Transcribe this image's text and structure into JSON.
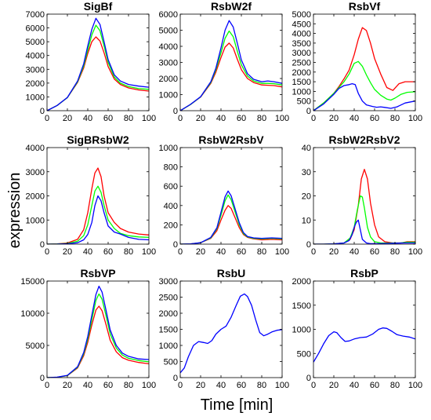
{
  "figure": {
    "xlabel": "Time [min]",
    "ylabel": "expression"
  },
  "colors": {
    "red": "#ff0000",
    "green": "#00ff00",
    "blue": "#0000ff"
  },
  "chart_data": [
    {
      "type": "line",
      "title": "SigBf",
      "xlim": [
        0,
        100
      ],
      "ylim": [
        0,
        7000
      ],
      "xticks": [
        0,
        20,
        40,
        60,
        80,
        100
      ],
      "yticks": [
        0,
        1000,
        2000,
        3000,
        4000,
        5000,
        6000,
        7000
      ],
      "series": [
        {
          "color": "red",
          "x": [
            0,
            10,
            20,
            30,
            36,
            40,
            44,
            48,
            52,
            56,
            60,
            66,
            72,
            80,
            90,
            100
          ],
          "y": [
            0,
            380,
            950,
            2050,
            3100,
            4150,
            5000,
            5350,
            5050,
            4200,
            3200,
            2300,
            1900,
            1650,
            1500,
            1420
          ]
        },
        {
          "color": "green",
          "x": [
            0,
            10,
            20,
            30,
            36,
            40,
            44,
            48,
            52,
            56,
            60,
            66,
            72,
            80,
            90,
            100
          ],
          "y": [
            0,
            380,
            950,
            2100,
            3250,
            4400,
            5500,
            6200,
            5800,
            4700,
            3500,
            2450,
            2000,
            1750,
            1600,
            1550
          ]
        },
        {
          "color": "blue",
          "x": [
            0,
            10,
            20,
            30,
            36,
            40,
            44,
            48,
            52,
            56,
            60,
            66,
            72,
            80,
            90,
            100
          ],
          "y": [
            0,
            380,
            960,
            2150,
            3400,
            4700,
            5900,
            6700,
            6250,
            5000,
            3700,
            2600,
            2150,
            1900,
            1780,
            1700
          ]
        }
      ]
    },
    {
      "type": "line",
      "title": "RsbW2f",
      "xlim": [
        0,
        100
      ],
      "ylim": [
        0,
        6000
      ],
      "xticks": [
        0,
        20,
        40,
        60,
        80,
        100
      ],
      "yticks": [
        0,
        1000,
        2000,
        3000,
        4000,
        5000,
        6000
      ],
      "series": [
        {
          "color": "red",
          "x": [
            0,
            10,
            20,
            30,
            35,
            40,
            44,
            48,
            52,
            56,
            60,
            66,
            72,
            80,
            86,
            92,
            100
          ],
          "y": [
            0,
            380,
            850,
            1700,
            2400,
            3300,
            3950,
            4200,
            3900,
            3200,
            2550,
            2000,
            1750,
            1600,
            1580,
            1560,
            1480
          ]
        },
        {
          "color": "green",
          "x": [
            0,
            10,
            20,
            30,
            35,
            40,
            44,
            48,
            52,
            56,
            60,
            66,
            72,
            80,
            86,
            92,
            100
          ],
          "y": [
            0,
            380,
            860,
            1750,
            2550,
            3600,
            4500,
            4950,
            4600,
            3700,
            2850,
            2150,
            1850,
            1700,
            1700,
            1680,
            1600
          ]
        },
        {
          "color": "blue",
          "x": [
            0,
            10,
            20,
            30,
            35,
            40,
            44,
            48,
            52,
            56,
            60,
            66,
            72,
            80,
            86,
            92,
            100
          ],
          "y": [
            0,
            390,
            870,
            1800,
            2650,
            3900,
            5000,
            5600,
            5200,
            4200,
            3150,
            2300,
            1950,
            1800,
            1850,
            1800,
            1700
          ]
        }
      ]
    },
    {
      "type": "line",
      "title": "RsbVf",
      "xlim": [
        0,
        100
      ],
      "ylim": [
        0,
        5000
      ],
      "xticks": [
        0,
        20,
        40,
        60,
        80,
        100
      ],
      "yticks": [
        0,
        500,
        1000,
        1500,
        2000,
        2500,
        3000,
        3500,
        4000,
        4500,
        5000
      ],
      "series": [
        {
          "color": "red",
          "x": [
            0,
            10,
            20,
            25,
            30,
            35,
            40,
            44,
            48,
            52,
            56,
            60,
            66,
            72,
            78,
            84,
            90,
            100
          ],
          "y": [
            0,
            400,
            900,
            1250,
            1650,
            2100,
            2900,
            3700,
            4300,
            4150,
            3500,
            2700,
            1900,
            1200,
            1050,
            1400,
            1500,
            1500
          ]
        },
        {
          "color": "green",
          "x": [
            0,
            10,
            20,
            25,
            30,
            35,
            40,
            44,
            48,
            52,
            56,
            60,
            66,
            72,
            76,
            80,
            86,
            92,
            100
          ],
          "y": [
            0,
            400,
            900,
            1200,
            1500,
            1900,
            2450,
            2550,
            2300,
            1850,
            1450,
            1100,
            800,
            600,
            550,
            650,
            850,
            950,
            980
          ]
        },
        {
          "color": "blue",
          "x": [
            0,
            10,
            20,
            25,
            30,
            35,
            38,
            41,
            44,
            48,
            52,
            58,
            62,
            66,
            70,
            76,
            82,
            90,
            100
          ],
          "y": [
            0,
            350,
            850,
            1150,
            1300,
            1350,
            1400,
            1350,
            900,
            500,
            300,
            220,
            180,
            200,
            170,
            120,
            200,
            400,
            500
          ]
        }
      ]
    },
    {
      "type": "line",
      "title": "SigBRsbW2",
      "xlim": [
        0,
        100
      ],
      "ylim": [
        0,
        4000
      ],
      "xticks": [
        0,
        20,
        40,
        60,
        80,
        100
      ],
      "yticks": [
        0,
        1000,
        2000,
        3000,
        4000
      ],
      "series": [
        {
          "color": "red",
          "x": [
            0,
            10,
            20,
            30,
            36,
            40,
            44,
            47,
            50,
            53,
            56,
            60,
            66,
            72,
            80,
            90,
            100
          ],
          "y": [
            0,
            10,
            50,
            200,
            600,
            1300,
            2300,
            2950,
            3150,
            2800,
            2000,
            1300,
            900,
            650,
            500,
            420,
            380
          ]
        },
        {
          "color": "green",
          "x": [
            0,
            10,
            20,
            30,
            36,
            40,
            44,
            47,
            50,
            53,
            56,
            60,
            66,
            72,
            80,
            90,
            100
          ],
          "y": [
            0,
            5,
            30,
            120,
            350,
            800,
            1600,
            2200,
            2400,
            2150,
            1600,
            1000,
            650,
            450,
            350,
            300,
            280
          ]
        },
        {
          "color": "blue",
          "x": [
            0,
            10,
            20,
            30,
            36,
            40,
            44,
            47,
            50,
            53,
            56,
            60,
            66,
            72,
            80,
            90,
            100
          ],
          "y": [
            0,
            2,
            15,
            60,
            180,
            400,
            900,
            1600,
            2000,
            1800,
            1300,
            750,
            500,
            420,
            280,
            200,
            180
          ]
        }
      ]
    },
    {
      "type": "line",
      "title": "RsbW2RsbV",
      "xlim": [
        0,
        100
      ],
      "ylim": [
        0,
        1000
      ],
      "xticks": [
        0,
        20,
        40,
        60,
        80,
        100
      ],
      "yticks": [
        0,
        200,
        400,
        600,
        800,
        1000
      ],
      "series": [
        {
          "color": "red",
          "x": [
            0,
            10,
            20,
            30,
            36,
            40,
            44,
            47,
            50,
            54,
            58,
            62,
            66,
            72,
            80,
            90,
            100
          ],
          "y": [
            0,
            2,
            15,
            60,
            140,
            250,
            350,
            400,
            370,
            270,
            170,
            100,
            70,
            55,
            45,
            50,
            45
          ]
        },
        {
          "color": "green",
          "x": [
            0,
            10,
            20,
            30,
            36,
            40,
            44,
            47,
            50,
            54,
            58,
            62,
            66,
            72,
            80,
            90,
            100
          ],
          "y": [
            0,
            2,
            15,
            65,
            160,
            300,
            450,
            510,
            460,
            330,
            200,
            110,
            75,
            60,
            55,
            60,
            55
          ]
        },
        {
          "color": "blue",
          "x": [
            0,
            10,
            20,
            30,
            36,
            40,
            44,
            47,
            50,
            54,
            58,
            62,
            66,
            72,
            80,
            90,
            100
          ],
          "y": [
            0,
            3,
            15,
            70,
            170,
            330,
            490,
            550,
            500,
            360,
            220,
            120,
            80,
            65,
            60,
            65,
            60
          ]
        }
      ]
    },
    {
      "type": "line",
      "title": "RsbW2RsbV2",
      "xlim": [
        0,
        100
      ],
      "ylim": [
        0,
        40
      ],
      "xticks": [
        0,
        20,
        40,
        60,
        80,
        100
      ],
      "yticks": [
        0,
        10,
        20,
        30,
        40
      ],
      "series": [
        {
          "color": "red",
          "x": [
            0,
            10,
            20,
            30,
            36,
            40,
            44,
            47,
            50,
            53,
            56,
            60,
            64,
            70,
            78,
            86,
            92,
            100
          ],
          "y": [
            0,
            0,
            0.1,
            0.5,
            2,
            6,
            16,
            27,
            31,
            27,
            17,
            8,
            3,
            1,
            0.5,
            0.5,
            1,
            1
          ]
        },
        {
          "color": "green",
          "x": [
            0,
            10,
            20,
            30,
            36,
            40,
            43,
            46,
            48,
            50,
            53,
            56,
            60,
            66,
            75,
            85,
            92,
            100
          ],
          "y": [
            0,
            0,
            0.1,
            0.5,
            2.5,
            7,
            14,
            20,
            19.5,
            15,
            7,
            3,
            1,
            0.5,
            0.5,
            0.5,
            0.8,
            0.8
          ]
        },
        {
          "color": "blue",
          "x": [
            0,
            10,
            20,
            30,
            35,
            38,
            40,
            42,
            44,
            46,
            48,
            52,
            56,
            62,
            70,
            80,
            90,
            100
          ],
          "y": [
            0,
            0,
            0.1,
            0.5,
            1.5,
            4,
            7,
            9,
            10,
            6,
            2,
            0.5,
            0.2,
            0.2,
            0.3,
            0.4,
            0.5,
            0.5
          ]
        }
      ]
    },
    {
      "type": "line",
      "title": "RsbVP",
      "xlim": [
        0,
        100
      ],
      "ylim": [
        0,
        15000
      ],
      "xticks": [
        0,
        20,
        40,
        60,
        80,
        100
      ],
      "yticks": [
        0,
        5000,
        10000,
        15000
      ],
      "series": [
        {
          "color": "red",
          "x": [
            0,
            10,
            20,
            30,
            36,
            40,
            44,
            48,
            51,
            54,
            58,
            62,
            68,
            74,
            80,
            90,
            100
          ],
          "y": [
            0,
            50,
            300,
            1500,
            3400,
            5500,
            8200,
            10500,
            11100,
            10400,
            8200,
            5800,
            4000,
            3100,
            2700,
            2350,
            2150
          ]
        },
        {
          "color": "green",
          "x": [
            0,
            10,
            20,
            30,
            36,
            40,
            44,
            48,
            51,
            54,
            58,
            62,
            68,
            74,
            80,
            90,
            100
          ],
          "y": [
            0,
            60,
            320,
            1600,
            3700,
            6000,
            9000,
            12000,
            13000,
            12200,
            9600,
            6800,
            4600,
            3500,
            3000,
            2650,
            2450
          ]
        },
        {
          "color": "blue",
          "x": [
            0,
            10,
            20,
            30,
            36,
            40,
            44,
            48,
            51,
            54,
            58,
            62,
            68,
            74,
            80,
            90,
            100
          ],
          "y": [
            0,
            70,
            350,
            1700,
            3900,
            6400,
            9700,
            12900,
            14200,
            13300,
            10400,
            7400,
            5000,
            3800,
            3300,
            2900,
            2800
          ]
        }
      ]
    },
    {
      "type": "line",
      "title": "RsbU",
      "xlim": [
        0,
        100
      ],
      "ylim": [
        0,
        3000
      ],
      "xticks": [
        0,
        20,
        40,
        60,
        80,
        100
      ],
      "yticks": [
        0,
        500,
        1000,
        1500,
        2000,
        2500,
        3000
      ],
      "series": [
        {
          "color": "blue",
          "x": [
            0,
            4,
            8,
            13,
            18,
            23,
            27,
            31,
            35,
            40,
            45,
            50,
            55,
            59,
            63,
            66,
            70,
            74,
            78,
            82,
            86,
            90,
            95,
            100
          ],
          "y": [
            150,
            300,
            650,
            1000,
            1120,
            1090,
            1060,
            1150,
            1350,
            1500,
            1600,
            1880,
            2250,
            2530,
            2600,
            2520,
            2250,
            1800,
            1400,
            1300,
            1350,
            1420,
            1470,
            1490
          ]
        }
      ]
    },
    {
      "type": "line",
      "title": "RsbP",
      "xlim": [
        0,
        100
      ],
      "ylim": [
        0,
        2000
      ],
      "xticks": [
        0,
        20,
        40,
        60,
        80,
        100
      ],
      "yticks": [
        0,
        500,
        1000,
        1500,
        2000
      ],
      "series": [
        {
          "color": "blue",
          "x": [
            0,
            5,
            10,
            15,
            20,
            23,
            27,
            31,
            35,
            40,
            46,
            52,
            58,
            64,
            68,
            72,
            77,
            82,
            88,
            94,
            100
          ],
          "y": [
            320,
            500,
            700,
            870,
            950,
            930,
            830,
            750,
            760,
            800,
            830,
            840,
            900,
            1000,
            1030,
            1020,
            960,
            890,
            860,
            840,
            800
          ]
        }
      ]
    }
  ]
}
